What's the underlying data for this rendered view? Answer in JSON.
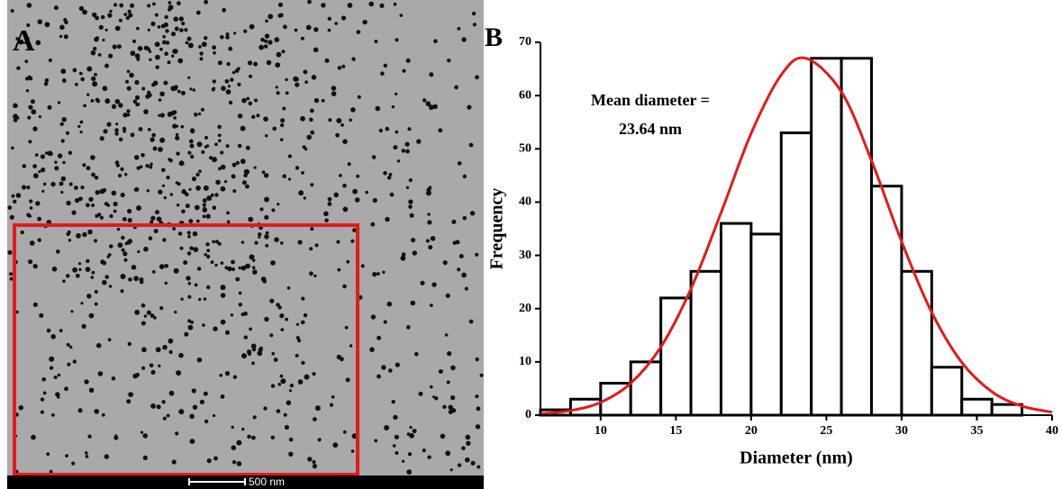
{
  "image": {
    "label": "A",
    "scale_bar": "500 nm"
  },
  "chart_data": {
    "type": "histogram",
    "panel_label": "B",
    "xlabel": "Diameter (nm)",
    "ylabel": "Frequency",
    "annotation": [
      "Mean diameter =",
      "23.64 nm"
    ],
    "bins": [
      6,
      8,
      10,
      12,
      14,
      16,
      18,
      20,
      22,
      24,
      26,
      28,
      30,
      32,
      34,
      36,
      38
    ],
    "values": [
      1,
      3,
      6,
      10,
      22,
      27,
      36,
      34,
      53,
      67,
      67,
      43,
      27,
      9,
      3,
      2
    ],
    "color": "#ffffff",
    "edgecolor": "#000000",
    "fit": {
      "color": "#e31a1c",
      "x": [
        6,
        8,
        10,
        12,
        14,
        16,
        18,
        20,
        22,
        23.64,
        26,
        28,
        30,
        32,
        34,
        36,
        38,
        40
      ],
      "values": [
        0.26,
        0.86,
        2.4,
        6.0,
        12.8,
        23.7,
        38.0,
        52.9,
        63.9,
        67,
        60.7,
        47.8,
        32.6,
        19.3,
        9.9,
        4.4,
        1.7,
        0.57
      ]
    },
    "xlim": [
      6,
      40
    ],
    "xticks": [
      10,
      15,
      20,
      25,
      30,
      35,
      40
    ],
    "ylim": [
      0,
      70
    ],
    "yticks": [
      0,
      10,
      20,
      30,
      40,
      50,
      60,
      70
    ]
  }
}
